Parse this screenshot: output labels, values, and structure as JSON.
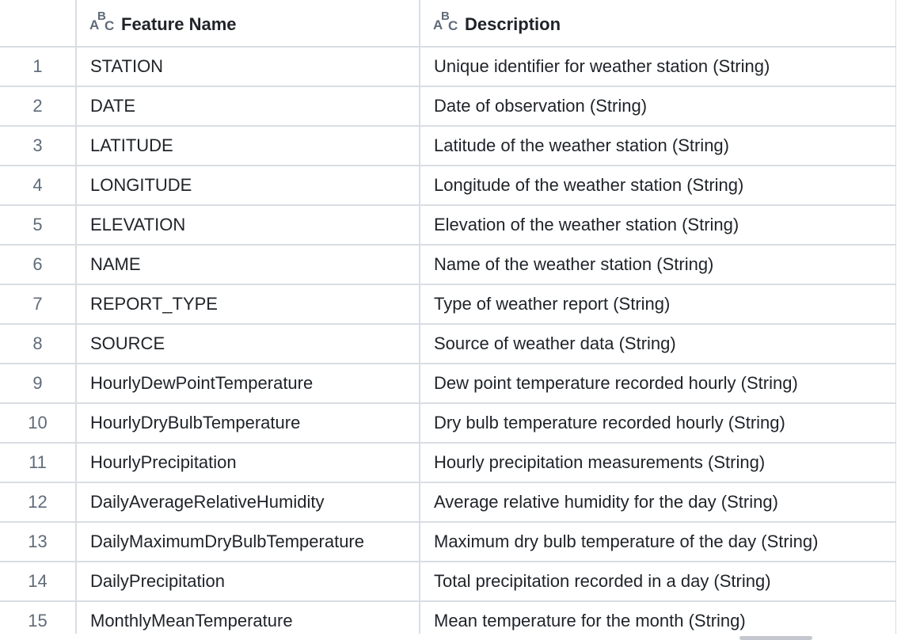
{
  "columns": [
    {
      "label": "Feature Name",
      "type_icon": "abc-type-icon"
    },
    {
      "label": "Description",
      "type_icon": "abc-type-icon"
    }
  ],
  "rows": [
    {
      "index": "1",
      "feature": "STATION",
      "description": "Unique identifier for weather station (String)"
    },
    {
      "index": "2",
      "feature": "DATE",
      "description": "Date of observation (String)"
    },
    {
      "index": "3",
      "feature": "LATITUDE",
      "description": "Latitude of the weather station (String)"
    },
    {
      "index": "4",
      "feature": "LONGITUDE",
      "description": "Longitude of the weather station (String)"
    },
    {
      "index": "5",
      "feature": "ELEVATION",
      "description": "Elevation of the weather station (String)"
    },
    {
      "index": "6",
      "feature": "NAME",
      "description": "Name of the weather station (String)"
    },
    {
      "index": "7",
      "feature": "REPORT_TYPE",
      "description": "Type of weather report (String)"
    },
    {
      "index": "8",
      "feature": "SOURCE",
      "description": "Source of weather data (String)"
    },
    {
      "index": "9",
      "feature": "HourlyDewPointTemperature",
      "description": "Dew point temperature recorded hourly (String)"
    },
    {
      "index": "10",
      "feature": "HourlyDryBulbTemperature",
      "description": "Dry bulb temperature recorded hourly (String)"
    },
    {
      "index": "11",
      "feature": "HourlyPrecipitation",
      "description": "Hourly precipitation measurements (String)"
    },
    {
      "index": "12",
      "feature": "DailyAverageRelativeHumidity",
      "description": "Average relative humidity for the day (String)"
    },
    {
      "index": "13",
      "feature": "DailyMaximumDryBulbTemperature",
      "description": "Maximum dry bulb temperature of the day (String)"
    },
    {
      "index": "14",
      "feature": "DailyPrecipitation",
      "description": "Total precipitation recorded in a day (String)"
    },
    {
      "index": "15",
      "feature": "MonthlyMeanTemperature",
      "description": "Mean temperature for the month (String)"
    }
  ]
}
